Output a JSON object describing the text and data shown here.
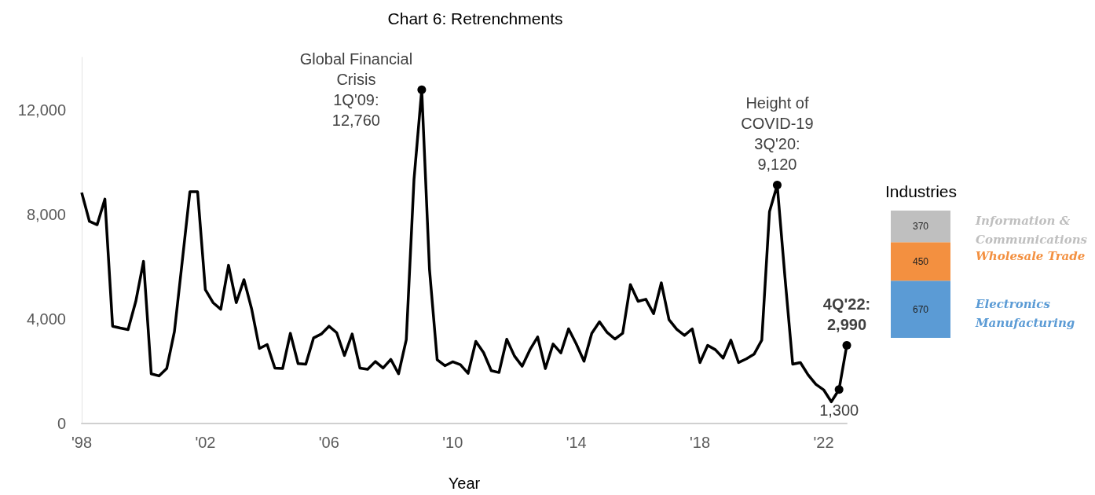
{
  "chart_data": [
    {
      "type": "line",
      "title": "Chart 6: Retrenchments",
      "xlabel": "Year",
      "categories": [
        "'98",
        null,
        null,
        null,
        null,
        null,
        null,
        null,
        null,
        null,
        null,
        null,
        null,
        null,
        null,
        null,
        "'02",
        null,
        null,
        null,
        null,
        null,
        null,
        null,
        null,
        null,
        null,
        null,
        null,
        null,
        null,
        null,
        "'06",
        null,
        null,
        null,
        null,
        null,
        null,
        null,
        null,
        null,
        null,
        null,
        null,
        null,
        null,
        null,
        "'10",
        null,
        null,
        null,
        null,
        null,
        null,
        null,
        null,
        null,
        null,
        null,
        null,
        null,
        null,
        null,
        "'14",
        null,
        null,
        null,
        null,
        null,
        null,
        null,
        null,
        null,
        null,
        null,
        null,
        null,
        null,
        null,
        "'18",
        null,
        null,
        null,
        null,
        null,
        null,
        null,
        null,
        null,
        null,
        null,
        null,
        null,
        null,
        null,
        "'22",
        null,
        null,
        null
      ],
      "series": [
        {
          "color": "#000000",
          "values": [
            8830,
            7730,
            7600,
            8580,
            3720,
            3650,
            3590,
            4670,
            6200,
            1900,
            1820,
            2100,
            3520,
            6170,
            8860,
            8860,
            5120,
            4620,
            4370,
            6050,
            4620,
            5500,
            4370,
            2870,
            3020,
            2120,
            2100,
            3450,
            2290,
            2270,
            3270,
            3420,
            3720,
            3470,
            2600,
            3420,
            2120,
            2070,
            2370,
            2120,
            2450,
            1900,
            3200,
            9330,
            12760,
            5910,
            2440,
            2210,
            2360,
            2250,
            1920,
            3140,
            2710,
            2020,
            1950,
            3220,
            2580,
            2190,
            2820,
            3310,
            2100,
            3040,
            2700,
            3620,
            3040,
            2380,
            3450,
            3890,
            3480,
            3230,
            3450,
            5310,
            4670,
            4750,
            4200,
            5380,
            3970,
            3600,
            3370,
            3620,
            2330,
            2990,
            2820,
            2500,
            3190,
            2330,
            2470,
            2650,
            3190,
            8100,
            9120,
            5600,
            2270,
            2330,
            1860,
            1500,
            1290,
            830,
            1300,
            2990
          ],
          "value_labels": [
            null,
            null,
            null,
            null,
            null,
            null,
            null,
            null,
            null,
            null,
            null,
            null,
            null,
            null,
            null,
            null,
            null,
            null,
            null,
            null,
            null,
            null,
            null,
            null,
            null,
            null,
            null,
            null,
            null,
            null,
            null,
            null,
            null,
            null,
            null,
            null,
            null,
            null,
            null,
            null,
            null,
            null,
            null,
            null,
            "Global Financial\nCrisis\n1Q'09:\n12,760",
            null,
            null,
            null,
            null,
            null,
            null,
            null,
            null,
            null,
            null,
            null,
            null,
            null,
            null,
            null,
            null,
            null,
            null,
            null,
            null,
            null,
            null,
            null,
            null,
            null,
            null,
            null,
            null,
            null,
            null,
            null,
            null,
            null,
            null,
            null,
            null,
            null,
            null,
            null,
            null,
            null,
            null,
            null,
            null,
            null,
            "Height of\nCOVID-19\n3Q'20:\n9,120",
            null,
            null,
            null,
            null,
            null,
            null,
            null,
            "1,300",
            "4Q'22:\n2,990"
          ]
        }
      ],
      "ylim": [
        0,
        14000
      ],
      "yticks": [
        0,
        {
          "value": 4000,
          "label": "4,000"
        },
        {
          "value": 8000,
          "label": "8,000"
        },
        {
          "value": 12000,
          "label": "12,000"
        }
      ],
      "grid": false,
      "legend": false
    },
    {
      "type": "bar",
      "title": "Industries",
      "stacked": true,
      "data_labels": true,
      "legend": "right",
      "categories": [
        null
      ],
      "series": [
        {
          "name": "Electronics Manufacturing",
          "color": "#5b9bd5",
          "values": [
            670
          ]
        },
        {
          "name": "Wholesale Trade",
          "color": "#f39040",
          "values": [
            450
          ]
        },
        {
          "name": "Information & Communications",
          "color": "#bfbfbf",
          "values": [
            370
          ]
        }
      ]
    }
  ]
}
